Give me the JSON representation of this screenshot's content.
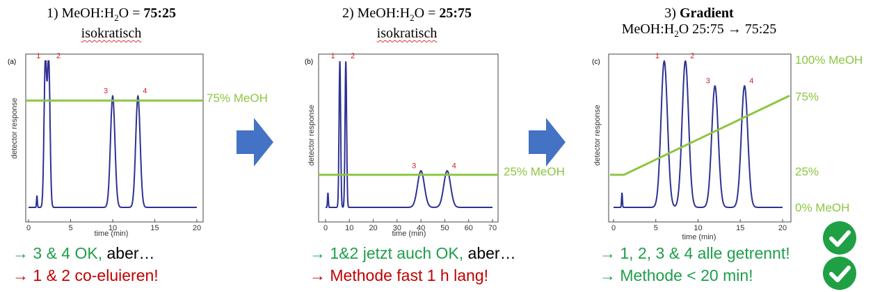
{
  "panels": [
    {
      "title_num": "1)",
      "title_formula": "MeOH:H",
      "title_sub": "2",
      "title_rest": "O = ",
      "title_bold": "75:25",
      "subtitle": "isokratisch",
      "panel_label": "(a)",
      "ylabel": "detector response",
      "xlabel": "time (min)",
      "xticks": [
        "0",
        "5",
        "10",
        "15",
        "20"
      ],
      "peak_labels": [
        "1",
        "2",
        "3",
        "4"
      ],
      "mobile_label": "75% MeOH",
      "bottom_line1_green": "→ 3 & 4 OK,",
      "bottom_line1_black": " aber…",
      "bottom_line2_red": "→ 1 & 2 co-eluieren!"
    },
    {
      "title_num": "2)",
      "title_formula": "MeOH:H",
      "title_sub": "2",
      "title_rest": "O = ",
      "title_bold": "25:75",
      "subtitle": "isokratisch",
      "panel_label": "(b)",
      "ylabel": "detector response",
      "xlabel": "time (min)",
      "xticks": [
        "0",
        "10",
        "20",
        "30",
        "40",
        "50",
        "60",
        "70"
      ],
      "peak_labels": [
        "1",
        "2",
        "3",
        "4"
      ],
      "mobile_label": "25% MeOH",
      "bottom_line1_green": "→ 1&2 jetzt auch OK,",
      "bottom_line1_black": " aber…",
      "bottom_line2_red": "→ Methode fast 1 h lang!"
    },
    {
      "title_num": "3)",
      "title_bold": "Gradient",
      "title2_a": "MeOH:H",
      "title2_sub": "2",
      "title2_b": "O 25:75 → 75:25",
      "panel_label": "(c)",
      "ylabel": "detector response",
      "xlabel": "time (min)",
      "xticks": [
        "0",
        "5",
        "10",
        "15",
        "20"
      ],
      "peak_labels": [
        "1",
        "2",
        "3",
        "4"
      ],
      "gradient_labels": [
        "100% MeOH",
        "75%",
        "25%",
        "0% MeOH"
      ],
      "bottom_line1_green": "→ 1, 2, 3 & 4 alle getrennt!",
      "bottom_line2_green": "→ Methode < 20 min!"
    }
  ],
  "colors": {
    "trace": "#2e3192",
    "mobile_phase": "#8cc63f",
    "arrow": "#4472c4",
    "check": "#1fa045"
  },
  "icons": [
    "right-arrow-icon",
    "right-arrow-icon",
    "checkmark-icon",
    "checkmark-icon"
  ],
  "chart_data": [
    {
      "type": "line",
      "title": "",
      "xlabel": "time (min)",
      "ylabel": "detector response",
      "xlim": [
        0,
        20
      ],
      "peaks": [
        {
          "label": "1",
          "x": 2.0,
          "height": 1.0
        },
        {
          "label": "2",
          "x": 2.4,
          "height": 1.0
        },
        {
          "label": "3",
          "x": 10.0,
          "height": 0.76
        },
        {
          "label": "4",
          "x": 13.0,
          "height": 0.76
        }
      ],
      "mobile_phase_percent_meoh": 75
    },
    {
      "type": "line",
      "title": "",
      "xlabel": "time (min)",
      "ylabel": "detector response",
      "xlim": [
        0,
        70
      ],
      "peaks": [
        {
          "label": "1",
          "x": 6.0,
          "height": 1.0
        },
        {
          "label": "2",
          "x": 8.5,
          "height": 1.0
        },
        {
          "label": "3",
          "x": 40.0,
          "height": 0.25
        },
        {
          "label": "4",
          "x": 51.0,
          "height": 0.25
        }
      ],
      "mobile_phase_percent_meoh": 25
    },
    {
      "type": "line",
      "title": "",
      "xlabel": "time (min)",
      "ylabel": "detector response",
      "xlim": [
        0,
        20
      ],
      "peaks": [
        {
          "label": "1",
          "x": 6.0,
          "height": 1.0
        },
        {
          "label": "2",
          "x": 8.5,
          "height": 1.0
        },
        {
          "label": "3",
          "x": 12.0,
          "height": 0.83
        },
        {
          "label": "4",
          "x": 15.5,
          "height": 0.83
        }
      ],
      "gradient_percent_meoh": {
        "start_x": 1.3,
        "start": 25,
        "end_x": 20,
        "end": 75
      }
    }
  ]
}
